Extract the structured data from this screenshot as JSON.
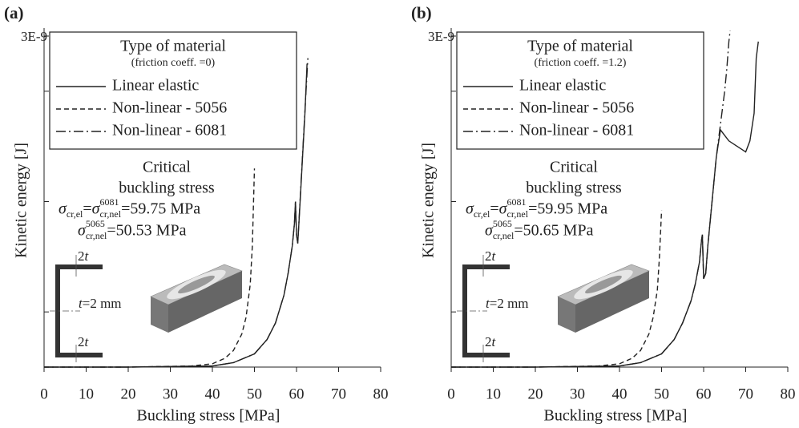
{
  "chart_data": [
    {
      "type": "line",
      "title": "(a)",
      "x_label": "Buckling stress [MPa]",
      "y_label": "Kinetic energy [J]",
      "xlim": [
        0,
        80
      ],
      "xticks": [
        0,
        10,
        20,
        30,
        40,
        50,
        60,
        70,
        80
      ],
      "ylim": [
        0,
        3e-09
      ],
      "yticks": [
        {
          "value": 3e-09,
          "label": "3E-9"
        }
      ],
      "y_minor_ticks": [
        5e-10,
        1.5e-09,
        2.5e-09
      ],
      "legend": {
        "title": "Type of material",
        "subtitle": "(friction coeff. =0)",
        "position": "upper left"
      },
      "series": [
        {
          "name": "Linear elastic",
          "color": "#222222",
          "dash": "solid",
          "x": [
            0,
            20,
            40,
            45,
            50,
            53,
            55,
            57,
            58,
            59,
            59.5,
            59.75,
            60,
            60.3,
            61,
            62,
            62.5
          ],
          "values": [
            0,
            0,
            1e-11,
            4e-11,
            1.2e-10,
            2.5e-10,
            4e-10,
            6.5e-10,
            8.5e-10,
            1.1e-09,
            1.3e-09,
            1.5e-09,
            1.2e-09,
            1.12e-09,
            1.6e-09,
            2.3e-09,
            2.75e-09
          ]
        },
        {
          "name": "Non-linear -  5056",
          "color": "#222222",
          "dash": "dashed",
          "x": [
            0,
            20,
            35,
            40,
            43,
            45,
            47,
            48,
            49,
            49.5,
            50
          ],
          "values": [
            0,
            0,
            1e-11,
            3e-11,
            8e-11,
            1.5e-10,
            3e-10,
            4.5e-10,
            7.5e-10,
            1.1e-09,
            1.8e-09
          ]
        },
        {
          "name": "Non-linear -  6081",
          "color": "#222222",
          "dash": "dashdot",
          "x": [
            0,
            20,
            40,
            45,
            50,
            53,
            55,
            57,
            58,
            59,
            59.5,
            59.75,
            60,
            60.3,
            61,
            62,
            62.7
          ],
          "values": [
            0,
            0,
            1e-11,
            4e-11,
            1.2e-10,
            2.5e-10,
            4e-10,
            6.5e-10,
            8.5e-10,
            1.1e-09,
            1.3e-09,
            1.5e-09,
            1.2e-09,
            1.12e-09,
            1.62e-09,
            2.32e-09,
            2.8e-09
          ]
        }
      ],
      "annotation": {
        "lines": [
          "Critical",
          "buckling stress"
        ],
        "formula_1": [
          "σ",
          "cr,el",
          "=",
          "σ",
          "6081",
          "cr,nel",
          "=59.75 MPa"
        ],
        "formula_2": [
          "σ",
          "5065",
          "cr,nel",
          "=50.53 MPa"
        ]
      },
      "section_labels": {
        "top": [
          "2",
          "t"
        ],
        "middle": [
          "t",
          "=2 mm"
        ],
        "bottom": [
          "2",
          "t"
        ]
      }
    },
    {
      "type": "line",
      "title": "(b)",
      "x_label": "Buckling stress [MPa]",
      "y_label": "Kinetic energy [J]",
      "xlim": [
        0,
        80
      ],
      "xticks": [
        0,
        10,
        20,
        30,
        40,
        50,
        60,
        70,
        80
      ],
      "ylim": [
        0,
        3e-09
      ],
      "yticks": [
        {
          "value": 3e-09,
          "label": "3E-9"
        }
      ],
      "y_minor_ticks": [
        5e-10,
        1.5e-09,
        2.5e-09
      ],
      "legend": {
        "title": "Type of material",
        "subtitle": "(friction coeff. =1.2)",
        "position": "upper left"
      },
      "series": [
        {
          "name": "Linear elastic",
          "color": "#222222",
          "dash": "solid",
          "x": [
            0,
            20,
            40,
            45,
            50,
            53,
            55,
            57,
            58,
            59,
            59.5,
            59.7,
            60,
            60.5,
            61,
            62,
            63,
            64,
            65,
            66,
            68,
            70,
            71,
            72,
            72.5,
            73
          ],
          "values": [
            0,
            0,
            1e-11,
            4e-11,
            1.2e-10,
            2.5e-10,
            4e-10,
            6e-10,
            7.5e-10,
            9.5e-10,
            1.15e-09,
            1.2e-09,
            8e-10,
            8.5e-10,
            1.1e-09,
            1.5e-09,
            1.9e-09,
            2.15e-09,
            2.1e-09,
            2.05e-09,
            2e-09,
            1.95e-09,
            2.05e-09,
            2.3e-09,
            2.8e-09,
            2.95e-09
          ]
        },
        {
          "name": "Non-linear -  5056",
          "color": "#222222",
          "dash": "dashed",
          "x": [
            0,
            20,
            35,
            40,
            43,
            45,
            47,
            48,
            49,
            49.5,
            50
          ],
          "values": [
            0,
            0,
            1e-11,
            3e-11,
            8e-11,
            1.5e-10,
            3e-10,
            4.5e-10,
            7e-10,
            1e-09,
            1.42e-09
          ]
        },
        {
          "name": "Non-linear -  6081",
          "color": "#222222",
          "dash": "dashdot",
          "x": [
            0,
            20,
            40,
            45,
            50,
            53,
            55,
            57,
            58,
            59,
            59.5,
            59.7,
            60,
            60.5,
            61,
            62,
            63,
            64,
            65,
            65.5,
            66,
            66.3
          ],
          "values": [
            0,
            0,
            1e-11,
            4e-11,
            1.2e-10,
            2.5e-10,
            4e-10,
            6e-10,
            7.5e-10,
            9.5e-10,
            1.15e-09,
            1.2e-09,
            8e-10,
            8.5e-10,
            1.1e-09,
            1.5e-09,
            1.9e-09,
            2.2e-09,
            2.5e-09,
            2.7e-09,
            2.95e-09,
            3.05e-09
          ]
        }
      ],
      "annotation": {
        "lines": [
          "Critical",
          "buckling stress"
        ],
        "formula_1": [
          "σ",
          "cr,el",
          "=",
          "σ",
          "6081",
          "cr,nel",
          "=59.95 MPa"
        ],
        "formula_2": [
          "σ",
          "5065",
          "cr,nel",
          "=50.65 MPa"
        ]
      },
      "section_labels": {
        "top": [
          "2",
          "t"
        ],
        "middle": [
          "t",
          "=2 mm"
        ],
        "bottom": [
          "2",
          "t"
        ]
      }
    }
  ]
}
